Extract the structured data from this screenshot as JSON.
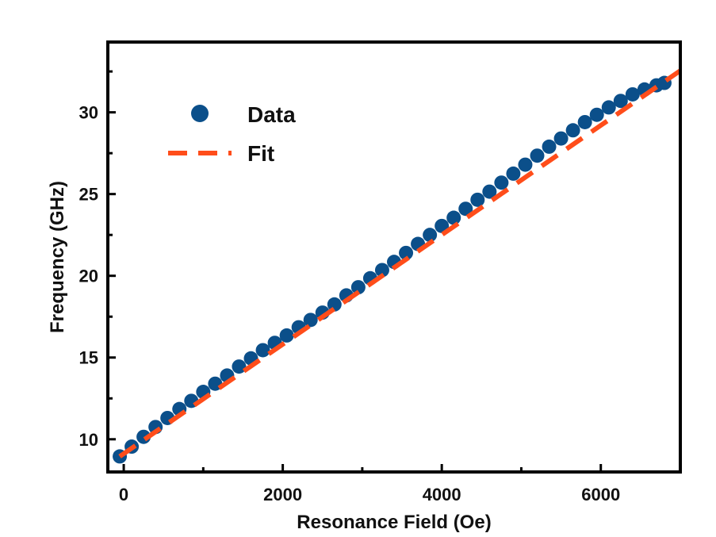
{
  "chart_data": {
    "type": "scatter",
    "xlabel": "Resonance Field (Oe)",
    "ylabel": "Frequency (GHz)",
    "xlim": [
      -200,
      7000
    ],
    "ylim": [
      8,
      34.3
    ],
    "x_ticks": [
      0,
      2000,
      4000,
      6000
    ],
    "x_tick_labels": [
      "0",
      "2000",
      "4000",
      "6000"
    ],
    "y_ticks": [
      10,
      15,
      20,
      25,
      30
    ],
    "y_tick_labels": [
      "10",
      "15",
      "20",
      "25",
      "30"
    ],
    "grid": false,
    "legend_position": "top-left",
    "series": [
      {
        "name": "Data",
        "kind": "markers",
        "color": "#0b4f8a",
        "x": [
          -50,
          100,
          250,
          400,
          550,
          700,
          850,
          1000,
          1150,
          1300,
          1450,
          1600,
          1750,
          1900,
          2050,
          2200,
          2350,
          2500,
          2650,
          2800,
          2950,
          3100,
          3250,
          3400,
          3550,
          3700,
          3850,
          4000,
          4150,
          4300,
          4450,
          4600,
          4750,
          4900,
          5050,
          5200,
          5350,
          5500,
          5650,
          5800,
          5950,
          6100,
          6250,
          6400,
          6550,
          6700,
          6800
        ],
        "y": [
          8.95,
          9.55,
          10.15,
          10.75,
          11.3,
          11.85,
          12.35,
          12.9,
          13.4,
          13.9,
          14.45,
          14.95,
          15.45,
          15.9,
          16.35,
          16.85,
          17.3,
          17.75,
          18.25,
          18.8,
          19.3,
          19.85,
          20.35,
          20.85,
          21.4,
          21.95,
          22.5,
          23.05,
          23.55,
          24.1,
          24.65,
          25.15,
          25.7,
          26.25,
          26.8,
          27.35,
          27.9,
          28.4,
          28.9,
          29.4,
          29.85,
          30.3,
          30.7,
          31.1,
          31.4,
          31.65,
          31.8
        ]
      },
      {
        "name": "Fit",
        "kind": "dashed-line",
        "color": "#ff4d1a",
        "x": [
          -50,
          7000
        ],
        "y": [
          8.95,
          32.55
        ]
      }
    ]
  }
}
